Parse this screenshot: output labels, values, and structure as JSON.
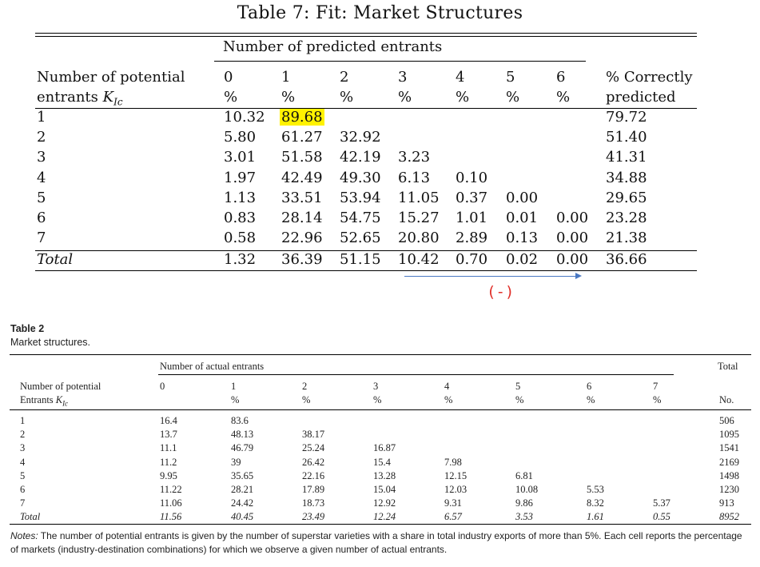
{
  "table7": {
    "title": "Table 7: Fit: Market Structures",
    "spanner": "Number of predicted entrants",
    "row_header": [
      "Number of potential",
      "entrants"
    ],
    "row_header_symbol": "K",
    "row_header_subscript": "Ic",
    "columns": [
      {
        "top": "0",
        "bottom": "%"
      },
      {
        "top": "1",
        "bottom": "%"
      },
      {
        "top": "2",
        "bottom": "%"
      },
      {
        "top": "3",
        "bottom": "%"
      },
      {
        "top": "4",
        "bottom": "%"
      },
      {
        "top": "5",
        "bottom": "%"
      },
      {
        "top": "6",
        "bottom": "%"
      }
    ],
    "last_column": {
      "top": "% Correctly",
      "bottom": "predicted"
    },
    "rows": [
      {
        "label": "1",
        "cells": [
          "10.32",
          "89.68",
          "",
          "",
          "",
          "",
          ""
        ],
        "correct": "79.72"
      },
      {
        "label": "2",
        "cells": [
          "5.80",
          "61.27",
          "32.92",
          "",
          "",
          "",
          ""
        ],
        "correct": "51.40"
      },
      {
        "label": "3",
        "cells": [
          "3.01",
          "51.58",
          "42.19",
          "3.23",
          "",
          "",
          ""
        ],
        "correct": "41.31"
      },
      {
        "label": "4",
        "cells": [
          "1.97",
          "42.49",
          "49.30",
          "6.13",
          "0.10",
          "",
          ""
        ],
        "correct": "34.88"
      },
      {
        "label": "5",
        "cells": [
          "1.13",
          "33.51",
          "53.94",
          "11.05",
          "0.37",
          "0.00",
          ""
        ],
        "correct": "29.65"
      },
      {
        "label": "6",
        "cells": [
          "0.83",
          "28.14",
          "54.75",
          "15.27",
          "1.01",
          "0.01",
          "0.00"
        ],
        "correct": "23.28"
      },
      {
        "label": "7",
        "cells": [
          "0.58",
          "22.96",
          "52.65",
          "20.80",
          "2.89",
          "0.13",
          "0.00"
        ],
        "correct": "21.38"
      }
    ],
    "total": {
      "label": "Total",
      "cells": [
        "1.32",
        "36.39",
        "51.15",
        "10.42",
        "0.70",
        "0.02",
        "0.00"
      ],
      "correct": "36.66"
    },
    "annotation": "(-)",
    "highlight_color": "#fff200",
    "arrow_color": "#4a78c2",
    "annotation_color": "#e0302a"
  },
  "table2": {
    "title": "Table 2",
    "caption": "Market structures.",
    "spanner": "Number of actual entrants",
    "total_header": "Total",
    "row_header": [
      "Number of potential",
      "Entrants"
    ],
    "row_header_symbol": "K",
    "row_header_subscript": "Ic",
    "columns": [
      {
        "top": "0",
        "bottom": ""
      },
      {
        "top": "1",
        "bottom": "%"
      },
      {
        "top": "2",
        "bottom": "%"
      },
      {
        "top": "3",
        "bottom": "%"
      },
      {
        "top": "4",
        "bottom": "%"
      },
      {
        "top": "5",
        "bottom": "%"
      },
      {
        "top": "6",
        "bottom": "%"
      },
      {
        "top": "7",
        "bottom": "%"
      }
    ],
    "no_header": "No.",
    "rows": [
      {
        "label": "1",
        "cells": [
          "16.4",
          "83.6",
          "",
          "",
          "",
          "",
          "",
          ""
        ],
        "no": "506"
      },
      {
        "label": "2",
        "cells": [
          "13.7",
          "48.13",
          "38.17",
          "",
          "",
          "",
          "",
          ""
        ],
        "no": "1095"
      },
      {
        "label": "3",
        "cells": [
          "11.1",
          "46.79",
          "25.24",
          "16.87",
          "",
          "",
          "",
          ""
        ],
        "no": "1541"
      },
      {
        "label": "4",
        "cells": [
          "11.2",
          "39",
          "26.42",
          "15.4",
          "7.98",
          "",
          "",
          ""
        ],
        "no": "2169"
      },
      {
        "label": "5",
        "cells": [
          "9.95",
          "35.65",
          "22.16",
          "13.28",
          "12.15",
          "6.81",
          "",
          ""
        ],
        "no": "1498"
      },
      {
        "label": "6",
        "cells": [
          "11.22",
          "28.21",
          "17.89",
          "15.04",
          "12.03",
          "10.08",
          "5.53",
          ""
        ],
        "no": "1230"
      },
      {
        "label": "7",
        "cells": [
          "11.06",
          "24.42",
          "18.73",
          "12.92",
          "9.31",
          "9.86",
          "8.32",
          "5.37"
        ],
        "no": "913"
      }
    ],
    "total": {
      "label": "Total",
      "cells": [
        "11.56",
        "40.45",
        "23.49",
        "12.24",
        "6.57",
        "3.53",
        "1.61",
        "0.55"
      ],
      "no": "8952"
    },
    "notes_label": "Notes:",
    "notes_text": " The number of potential entrants is given by the number of superstar varieties with a share in total industry exports of more than 5%. Each cell reports the percentage of markets (industry-destination combinations) for which we observe a given number of actual entrants."
  }
}
